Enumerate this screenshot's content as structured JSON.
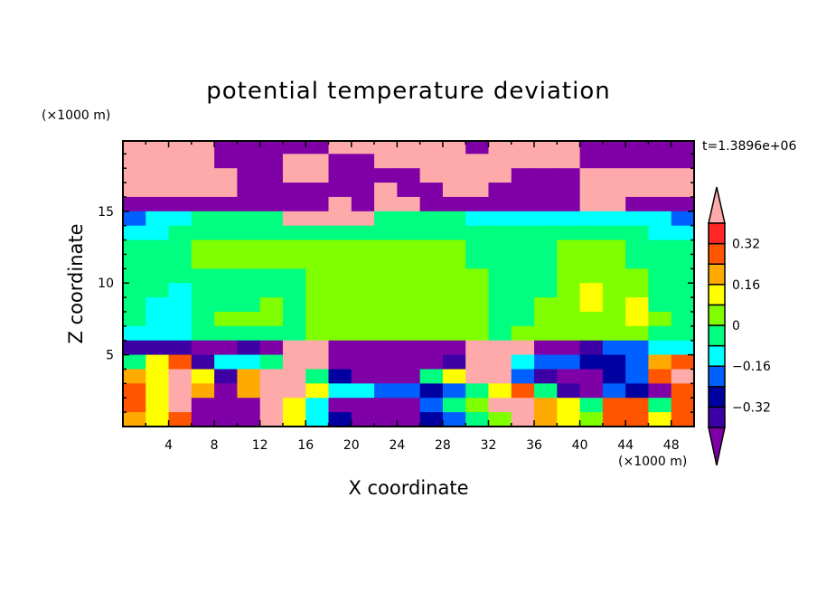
{
  "chart_data": {
    "type": "heatmap",
    "title": "potential temperature deviation",
    "xlabel": "X coordinate",
    "ylabel": "Z coordinate",
    "x_unit": "(×1000 m)",
    "y_unit": "(×1000 m)",
    "time_label": "t=1.3896e+06",
    "xlim": [
      0,
      50
    ],
    "ylim": [
      0,
      19.9
    ],
    "x_ticks": [
      4,
      8,
      12,
      16,
      20,
      24,
      28,
      32,
      36,
      40,
      44,
      48
    ],
    "x_tick_labels": [
      "4",
      "8",
      "12",
      "16",
      "20",
      "24",
      "28",
      "32",
      "36",
      "40",
      "44",
      "48"
    ],
    "y_ticks": [
      5,
      10,
      15
    ],
    "y_tick_labels": [
      "5",
      "10",
      "15"
    ],
    "grid": false,
    "x_centers": [
      1,
      3,
      5,
      7,
      9,
      11,
      13,
      15,
      17,
      19,
      21,
      23,
      25,
      27,
      29,
      31,
      33,
      35,
      37,
      39,
      41,
      43,
      45,
      47,
      49
    ],
    "z_centers_top_down": [
      19.5,
      18.5,
      17.5,
      16.5,
      15.5,
      14.5,
      13.5,
      12.5,
      11.5,
      10.5,
      9.5,
      8.5,
      7.5,
      6.5,
      5.5,
      4.5,
      3.5,
      2.5,
      1.5,
      0.5
    ],
    "values_top_down": [
      [
        0.5,
        0.5,
        0.5,
        0.5,
        -0.5,
        -0.5,
        -0.5,
        -0.5,
        -0.5,
        0.5,
        0.5,
        0.5,
        0.5,
        0.5,
        0.5,
        -0.5,
        0.5,
        0.5,
        0.5,
        0.5,
        -0.5,
        -0.5,
        -0.5,
        -0.5,
        -0.5
      ],
      [
        0.5,
        0.5,
        0.5,
        0.5,
        -0.5,
        -0.5,
        -0.5,
        0.5,
        0.5,
        -0.5,
        -0.5,
        0.5,
        0.5,
        0.5,
        0.5,
        0.5,
        0.5,
        0.5,
        0.5,
        0.5,
        -0.5,
        -0.5,
        -0.5,
        -0.5,
        -0.5
      ],
      [
        0.5,
        0.5,
        0.5,
        0.5,
        0.5,
        -0.5,
        -0.5,
        0.5,
        0.5,
        -0.5,
        -0.5,
        -0.5,
        -0.5,
        0.5,
        0.5,
        0.5,
        0.5,
        -0.5,
        -0.5,
        -0.5,
        0.5,
        0.5,
        0.5,
        0.5,
        0.5
      ],
      [
        0.5,
        0.5,
        0.5,
        0.5,
        0.5,
        -0.5,
        -0.5,
        -0.5,
        -0.5,
        -0.5,
        -0.5,
        0.5,
        -0.5,
        -0.5,
        0.5,
        0.5,
        -0.5,
        -0.5,
        -0.5,
        -0.5,
        0.5,
        0.5,
        0.5,
        0.5,
        0.5
      ],
      [
        -0.5,
        -0.5,
        -0.5,
        -0.5,
        -0.5,
        -0.5,
        -0.5,
        -0.5,
        -0.5,
        0.5,
        -0.5,
        0.5,
        0.5,
        -0.5,
        -0.5,
        -0.5,
        -0.5,
        -0.5,
        -0.5,
        -0.5,
        0.5,
        0.5,
        -0.5,
        -0.5,
        -0.5
      ],
      [
        -0.2,
        -0.12,
        -0.12,
        -0.04,
        -0.04,
        -0.04,
        -0.04,
        0.5,
        0.5,
        0.5,
        0.5,
        -0.04,
        -0.04,
        -0.04,
        -0.04,
        -0.12,
        -0.12,
        -0.12,
        -0.12,
        -0.12,
        -0.12,
        -0.12,
        -0.12,
        -0.12,
        -0.2
      ],
      [
        -0.12,
        -0.12,
        -0.04,
        -0.04,
        -0.04,
        -0.04,
        -0.04,
        -0.04,
        -0.04,
        -0.04,
        -0.04,
        -0.04,
        -0.04,
        -0.04,
        -0.04,
        -0.04,
        -0.04,
        -0.04,
        -0.04,
        -0.04,
        -0.04,
        -0.04,
        -0.04,
        -0.12,
        -0.12
      ],
      [
        -0.04,
        -0.04,
        -0.04,
        0.04,
        0.04,
        0.04,
        0.04,
        0.04,
        0.04,
        0.04,
        0.04,
        0.04,
        0.04,
        0.04,
        0.04,
        -0.04,
        -0.04,
        -0.04,
        -0.04,
        0.04,
        0.04,
        0.04,
        -0.04,
        -0.04,
        -0.04
      ],
      [
        -0.04,
        -0.04,
        -0.04,
        0.04,
        0.04,
        0.04,
        0.04,
        0.04,
        0.04,
        0.04,
        0.04,
        0.04,
        0.04,
        0.04,
        0.04,
        -0.04,
        -0.04,
        -0.04,
        -0.04,
        0.04,
        0.04,
        0.04,
        -0.04,
        -0.04,
        -0.04
      ],
      [
        -0.04,
        -0.04,
        -0.04,
        -0.04,
        -0.04,
        -0.04,
        -0.04,
        -0.04,
        0.04,
        0.04,
        0.04,
        0.04,
        0.04,
        0.04,
        0.04,
        0.04,
        -0.04,
        -0.04,
        -0.04,
        0.04,
        0.04,
        0.04,
        0.04,
        -0.04,
        -0.04
      ],
      [
        -0.04,
        -0.04,
        -0.12,
        -0.04,
        -0.04,
        -0.04,
        -0.04,
        -0.04,
        0.04,
        0.04,
        0.04,
        0.04,
        0.04,
        0.04,
        0.04,
        0.04,
        -0.04,
        -0.04,
        -0.04,
        0.04,
        0.12,
        0.04,
        0.04,
        -0.04,
        -0.04
      ],
      [
        -0.04,
        -0.12,
        -0.12,
        -0.04,
        -0.04,
        -0.04,
        0.04,
        -0.04,
        0.04,
        0.04,
        0.04,
        0.04,
        0.04,
        0.04,
        0.04,
        0.04,
        -0.04,
        -0.04,
        0.04,
        0.04,
        0.12,
        0.04,
        0.12,
        -0.04,
        -0.04
      ],
      [
        -0.04,
        -0.12,
        -0.12,
        -0.04,
        0.04,
        0.04,
        0.04,
        -0.04,
        0.04,
        0.04,
        0.04,
        0.04,
        0.04,
        0.04,
        0.04,
        0.04,
        -0.04,
        -0.04,
        0.04,
        0.04,
        0.04,
        0.04,
        0.12,
        0.04,
        -0.04
      ],
      [
        -0.12,
        -0.12,
        -0.12,
        -0.04,
        -0.04,
        -0.04,
        -0.04,
        -0.04,
        0.04,
        0.04,
        0.04,
        0.04,
        0.04,
        0.04,
        0.04,
        0.04,
        -0.04,
        0.04,
        0.04,
        0.04,
        0.04,
        0.04,
        0.04,
        -0.04,
        -0.04
      ],
      [
        -0.36,
        -0.36,
        -0.36,
        -0.5,
        -0.5,
        -0.36,
        -0.5,
        0.5,
        0.5,
        -0.5,
        -0.5,
        -0.5,
        -0.5,
        -0.5,
        -0.5,
        0.5,
        0.5,
        0.5,
        -0.5,
        -0.5,
        -0.36,
        -0.2,
        -0.2,
        -0.12,
        -0.12
      ],
      [
        -0.04,
        0.12,
        0.28,
        -0.36,
        -0.12,
        -0.12,
        -0.04,
        0.5,
        0.5,
        -0.5,
        -0.5,
        -0.5,
        -0.5,
        -0.5,
        -0.36,
        0.5,
        0.5,
        -0.12,
        -0.2,
        -0.2,
        -0.28,
        -0.28,
        -0.2,
        0.2,
        0.28
      ],
      [
        0.2,
        0.12,
        0.5,
        0.12,
        -0.36,
        0.2,
        0.5,
        0.5,
        -0.04,
        -0.28,
        -0.5,
        -0.5,
        -0.5,
        -0.04,
        0.12,
        0.5,
        0.5,
        -0.2,
        -0.36,
        -0.5,
        -0.5,
        -0.28,
        -0.2,
        0.28,
        0.5
      ],
      [
        0.28,
        0.12,
        0.5,
        0.2,
        -0.5,
        0.2,
        0.5,
        0.5,
        0.12,
        -0.12,
        -0.12,
        -0.2,
        -0.2,
        -0.28,
        -0.2,
        -0.04,
        0.12,
        0.28,
        -0.04,
        -0.36,
        -0.5,
        -0.2,
        -0.28,
        -0.5,
        0.28
      ],
      [
        0.28,
        0.12,
        0.5,
        -0.5,
        -0.5,
        -0.5,
        0.5,
        0.12,
        -0.12,
        -0.5,
        -0.5,
        -0.5,
        -0.5,
        -0.2,
        -0.04,
        0.04,
        0.5,
        0.5,
        0.2,
        0.12,
        -0.04,
        0.28,
        0.28,
        -0.04,
        0.28
      ],
      [
        0.2,
        0.12,
        0.28,
        -0.5,
        -0.5,
        -0.5,
        0.5,
        0.12,
        -0.12,
        -0.28,
        -0.5,
        -0.5,
        -0.5,
        -0.28,
        -0.2,
        -0.04,
        0.04,
        0.5,
        0.2,
        0.12,
        0.04,
        0.28,
        0.28,
        0.12,
        0.28
      ]
    ],
    "levels": [
      -0.4,
      -0.32,
      -0.24,
      -0.16,
      -0.08,
      0,
      0.08,
      0.16,
      0.24,
      0.32,
      0.4
    ],
    "colorbar_labels": [
      "0.32",
      "0.16",
      "0",
      "-0.16",
      "-0.32"
    ],
    "colorbar_label_values": [
      0.32,
      0.16,
      0,
      -0.16,
      -0.32
    ],
    "colors": [
      "#8000a8",
      "#3c00a4",
      "#0000a0",
      "#0060ff",
      "#00ffff",
      "#00ff80",
      "#80ff00",
      "#ffff00",
      "#ffaa00",
      "#ff5500",
      "#ff2626",
      "#ffaaaa"
    ],
    "colorbar_placement": "right"
  }
}
